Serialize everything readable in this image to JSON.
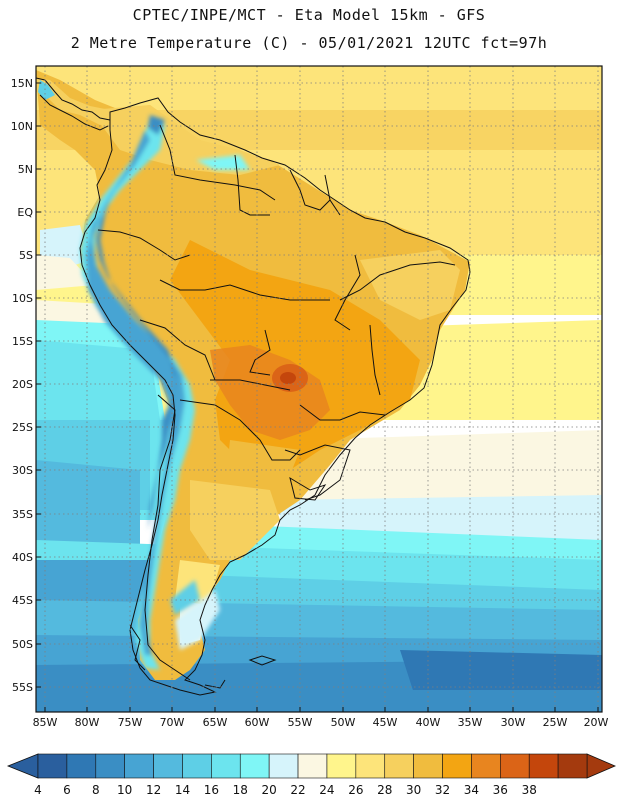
{
  "header": {
    "line1": "CPTEC/INPE/MCT -  Eta Model 15km - GFS",
    "line2": "2 Metre Temperature (C) - 05/01/2021 12UTC fct=97h"
  },
  "axes": {
    "lat_labels": [
      "15N",
      "10N",
      "5N",
      "EQ",
      "5S",
      "10S",
      "15S",
      "20S",
      "25S",
      "30S",
      "35S",
      "40S",
      "45S",
      "50S",
      "55S"
    ],
    "lon_labels": [
      "85W",
      "80W",
      "75W",
      "70W",
      "65W",
      "60W",
      "55W",
      "50W",
      "45W",
      "40W",
      "35W",
      "30W",
      "25W",
      "20W"
    ]
  },
  "colorbar": {
    "ticks": [
      "4",
      "6",
      "8",
      "10",
      "12",
      "14",
      "16",
      "18",
      "20",
      "22",
      "24",
      "26",
      "28",
      "30",
      "32",
      "34",
      "36",
      "38"
    ],
    "colors": [
      "#2a5f9e",
      "#2f78b4",
      "#3a8ec4",
      "#47a4d3",
      "#54bade",
      "#5ecfe6",
      "#6ce4ee",
      "#7ff6f6",
      "#d6f4fb",
      "#fbf7e2",
      "#fff58c",
      "#fde47a",
      "#f6d05e",
      "#f0bc3e",
      "#f3a512",
      "#e8851f",
      "#db6417",
      "#c4460c",
      "#a43a0e"
    ],
    "left_arrow_color": "#2a5f9e",
    "right_arrow_color": "#a43a0e"
  }
}
